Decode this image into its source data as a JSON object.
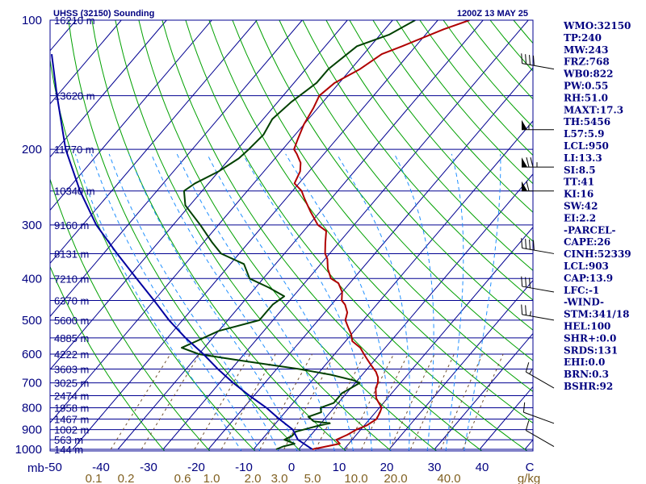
{
  "header": {
    "title": "UHSS (32150) Sounding",
    "datetime": "1200Z 13 MAY 25"
  },
  "chart_data": {
    "type": "line",
    "pressure_ticks": [
      "100",
      "200",
      "300",
      "400",
      "500",
      "600",
      "700",
      "800",
      "900",
      "1000"
    ],
    "pressure_unit": "mb",
    "height_labels": [
      {
        "p": 100,
        "text": "16210 m"
      },
      {
        "p": 150,
        "text": "13620 m"
      },
      {
        "p": 200,
        "text": "11770 m"
      },
      {
        "p": 250,
        "text": "10340 m"
      },
      {
        "p": 300,
        "text": "9160 m"
      },
      {
        "p": 350,
        "text": "8131 m"
      },
      {
        "p": 400,
        "text": "7210 m"
      },
      {
        "p": 450,
        "text": "6370 m"
      },
      {
        "p": 500,
        "text": "5600 m"
      },
      {
        "p": 550,
        "text": "4885 m"
      },
      {
        "p": 600,
        "text": "4222 m"
      },
      {
        "p": 650,
        "text": "3603 m"
      },
      {
        "p": 700,
        "text": "3025 m"
      },
      {
        "p": 750,
        "text": "2474 m"
      },
      {
        "p": 800,
        "text": "1958 m"
      },
      {
        "p": 850,
        "text": "1467 m"
      },
      {
        "p": 900,
        "text": "1002 m"
      },
      {
        "p": 950,
        "text": "563 m"
      },
      {
        "p": 1000,
        "text": "144 m"
      }
    ],
    "temp_ticks": [
      "-50",
      "-40",
      "-30",
      "-20",
      "-10",
      "0",
      "10",
      "20",
      "30",
      "40",
      "C"
    ],
    "temp_unit": "C",
    "mixing_ratio_ticks": [
      "0.1",
      "0.2",
      "0.6",
      "1.0",
      "2.0",
      "3.0",
      "5.0",
      "10.0",
      "20.0",
      "40.0",
      "g/kg"
    ],
    "mixing_ratio_unit": "g/kg",
    "series": [
      {
        "color": "#b00000",
        "points": [
          [
            1000,
            3
          ],
          [
            985,
            5.5
          ],
          [
            970,
            8
          ],
          [
            950,
            6.5
          ],
          [
            925,
            8
          ],
          [
            900,
            9
          ],
          [
            880,
            10.5
          ],
          [
            850,
            11.5
          ],
          [
            820,
            11
          ],
          [
            800,
            10.5
          ],
          [
            780,
            9
          ],
          [
            760,
            7.5
          ],
          [
            740,
            6.5
          ],
          [
            720,
            5.5
          ],
          [
            700,
            5
          ],
          [
            680,
            4
          ],
          [
            660,
            2.5
          ],
          [
            640,
            0.5
          ],
          [
            620,
            -1.5
          ],
          [
            600,
            -3.5
          ],
          [
            580,
            -5.5
          ],
          [
            560,
            -8.5
          ],
          [
            540,
            -10
          ],
          [
            520,
            -12
          ],
          [
            500,
            -14
          ],
          [
            480,
            -15
          ],
          [
            460,
            -17
          ],
          [
            450,
            -18.5
          ],
          [
            430,
            -20
          ],
          [
            410,
            -22.5
          ],
          [
            400,
            -25
          ],
          [
            380,
            -27.5
          ],
          [
            360,
            -29.5
          ],
          [
            350,
            -31
          ],
          [
            330,
            -33
          ],
          [
            310,
            -35
          ],
          [
            300,
            -38
          ],
          [
            280,
            -42
          ],
          [
            260,
            -46
          ],
          [
            250,
            -48
          ],
          [
            240,
            -51
          ],
          [
            225,
            -52
          ],
          [
            215,
            -53.5
          ],
          [
            205,
            -56
          ],
          [
            200,
            -57.5
          ],
          [
            190,
            -58.5
          ],
          [
            175,
            -60
          ],
          [
            160,
            -61
          ],
          [
            150,
            -62
          ],
          [
            140,
            -61
          ],
          [
            130,
            -58
          ],
          [
            120,
            -56
          ],
          [
            115,
            -53
          ],
          [
            105,
            -47
          ],
          [
            100,
            -43
          ]
        ]
      },
      {
        "color": "#004000",
        "points": [
          [
            1000,
            -5
          ],
          [
            985,
            -4
          ],
          [
            970,
            -2
          ],
          [
            950,
            -5
          ],
          [
            930,
            -4
          ],
          [
            910,
            -4
          ],
          [
            880,
            0
          ],
          [
            870,
            2
          ],
          [
            860,
            -2
          ],
          [
            840,
            -4
          ],
          [
            820,
            -2
          ],
          [
            800,
            -3
          ],
          [
            780,
            -1
          ],
          [
            760,
            -1
          ],
          [
            740,
            -1
          ],
          [
            720,
            0
          ],
          [
            700,
            1
          ],
          [
            690,
            -1
          ],
          [
            670,
            -7
          ],
          [
            650,
            -15
          ],
          [
            620,
            -30
          ],
          [
            600,
            -40
          ],
          [
            580,
            -45
          ],
          [
            560,
            -43
          ],
          [
            530,
            -40
          ],
          [
            500,
            -33
          ],
          [
            480,
            -33
          ],
          [
            460,
            -33
          ],
          [
            440,
            -32
          ],
          [
            420,
            -37
          ],
          [
            400,
            -43
          ],
          [
            370,
            -47
          ],
          [
            350,
            -54
          ],
          [
            330,
            -58
          ],
          [
            300,
            -64
          ],
          [
            270,
            -71
          ],
          [
            250,
            -74
          ],
          [
            240,
            -73
          ],
          [
            225,
            -70
          ],
          [
            210,
            -68
          ],
          [
            200,
            -67.5
          ],
          [
            185,
            -67
          ],
          [
            170,
            -68
          ],
          [
            155,
            -67
          ],
          [
            140,
            -65
          ],
          [
            130,
            -65
          ],
          [
            115,
            -63
          ],
          [
            108,
            -58
          ],
          [
            100,
            -55
          ]
        ]
      },
      {
        "color": "#0000a0",
        "points": [
          [
            1000,
            3
          ],
          [
            950,
            -2
          ],
          [
            900,
            -5
          ],
          [
            850,
            -10
          ],
          [
            800,
            -15
          ],
          [
            750,
            -21
          ],
          [
            700,
            -27
          ],
          [
            650,
            -33
          ],
          [
            600,
            -39
          ],
          [
            550,
            -46
          ],
          [
            500,
            -53
          ],
          [
            450,
            -60
          ],
          [
            400,
            -68
          ],
          [
            350,
            -77
          ],
          [
            300,
            -87
          ],
          [
            250,
            -97
          ],
          [
            200,
            -108
          ],
          [
            150,
            -120
          ],
          [
            120,
            -129
          ]
        ]
      }
    ]
  },
  "indices": [
    "WMO:32150",
    "TP:240",
    "MW:243",
    "FRZ:768",
    "WB0:822",
    "PW:0.55",
    "RH:51.0",
    "MAXT:17.3",
    "TH:5456",
    "L57:5.9",
    "LCL:950",
    "LI:13.3",
    "SI:8.5",
    "TT:41",
    "KI:16",
    "SW:42",
    "EI:2.2",
    "-PARCEL-",
    "CAPE:26",
    "CINH:52339",
    "LCL:903",
    "CAP:13.9",
    "LFC:-1",
    "-WIND-",
    "STM:341/18",
    "HEL:100",
    "SHR+:0.0",
    "SRDS:131",
    "EHI:0.0",
    "BRN:0.3",
    "BSHR:92"
  ],
  "colors": {
    "isobar": "#000090",
    "isotherm": "#000090",
    "dry_adiabat": "#00a000",
    "moist_adiabat": "#2090ff",
    "mixing_ratio": "#705030",
    "temperature": "#b00000",
    "dewpoint": "#004000",
    "parcel": "#0000a0",
    "text": "#000080",
    "mr_label": "#806020"
  },
  "wind_barbs": [
    {
      "p": 985,
      "dir": 300,
      "speed": 10
    },
    {
      "p": 870,
      "dir": 290,
      "speed": 10
    },
    {
      "p": 720,
      "dir": 300,
      "speed": 15
    },
    {
      "p": 500,
      "dir": 280,
      "speed": 25
    },
    {
      "p": 430,
      "dir": 280,
      "speed": 30
    },
    {
      "p": 350,
      "dir": 280,
      "speed": 40
    },
    {
      "p": 250,
      "dir": 270,
      "speed": 60
    },
    {
      "p": 220,
      "dir": 270,
      "speed": 75
    },
    {
      "p": 180,
      "dir": 270,
      "speed": 55
    },
    {
      "p": 130,
      "dir": 280,
      "speed": 40
    }
  ]
}
